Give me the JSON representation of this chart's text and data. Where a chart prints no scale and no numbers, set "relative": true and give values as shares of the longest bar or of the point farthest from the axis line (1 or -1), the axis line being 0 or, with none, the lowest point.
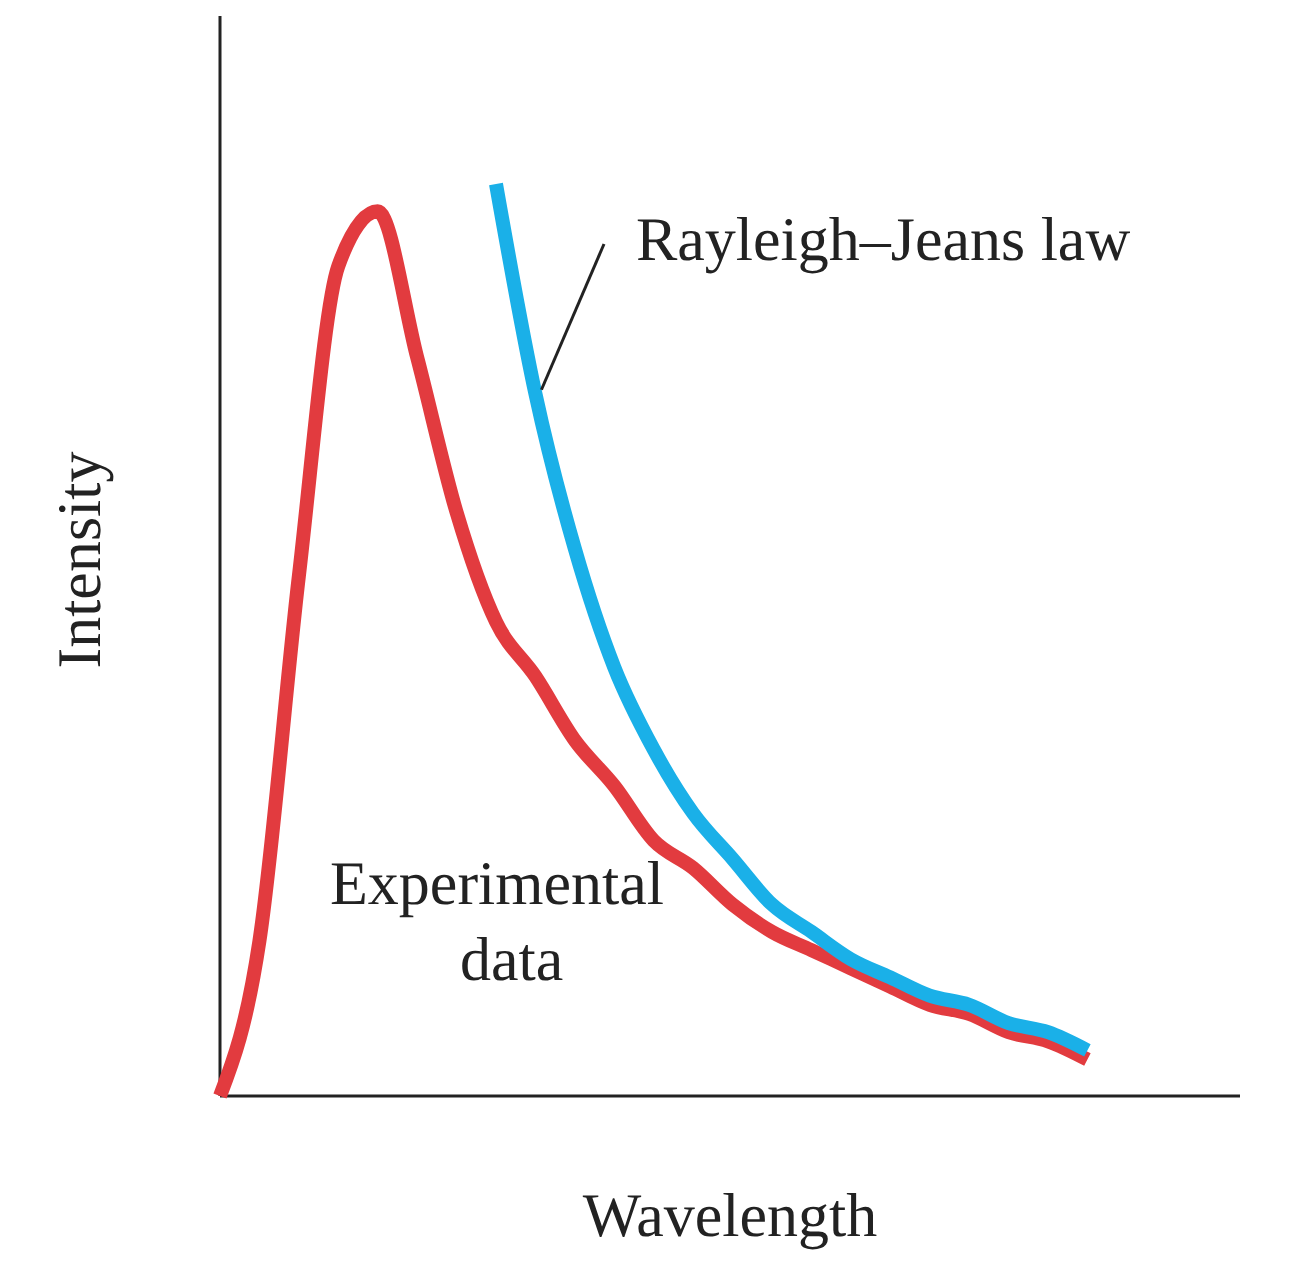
{
  "chart_data": {
    "type": "line",
    "relative": true,
    "xlabel": "Wavelength",
    "ylabel": "Intensity",
    "categories": [
      null,
      null,
      null,
      null,
      null,
      null,
      null,
      null,
      null,
      null,
      null,
      null,
      null,
      null,
      null,
      null,
      null,
      null,
      null,
      null,
      null,
      null,
      null
    ],
    "series": [
      {
        "name": "Experimental data",
        "color": "#e23b3f",
        "values": [
          0,
          0.17,
          0.57,
          0.91,
          0.97,
          0.81,
          0.64,
          0.52,
          0.46,
          0.39,
          0.34,
          0.28,
          0.25,
          0.21,
          0.18,
          0.16,
          0.14,
          0.12,
          0.1,
          0.09,
          0.07,
          0.06,
          0.04
        ]
      },
      {
        "name": "Rayleigh–Jeans law",
        "color": "#1ab0e8",
        "values": [
          null,
          null,
          null,
          null,
          null,
          null,
          null,
          1,
          0.77,
          0.6,
          0.47,
          0.38,
          0.31,
          0.26,
          0.21,
          0.18,
          0.15,
          0.13,
          0.11,
          0.1,
          0.08,
          0.07,
          0.05
        ]
      }
    ],
    "marker": "none",
    "line_style": "solid"
  }
}
